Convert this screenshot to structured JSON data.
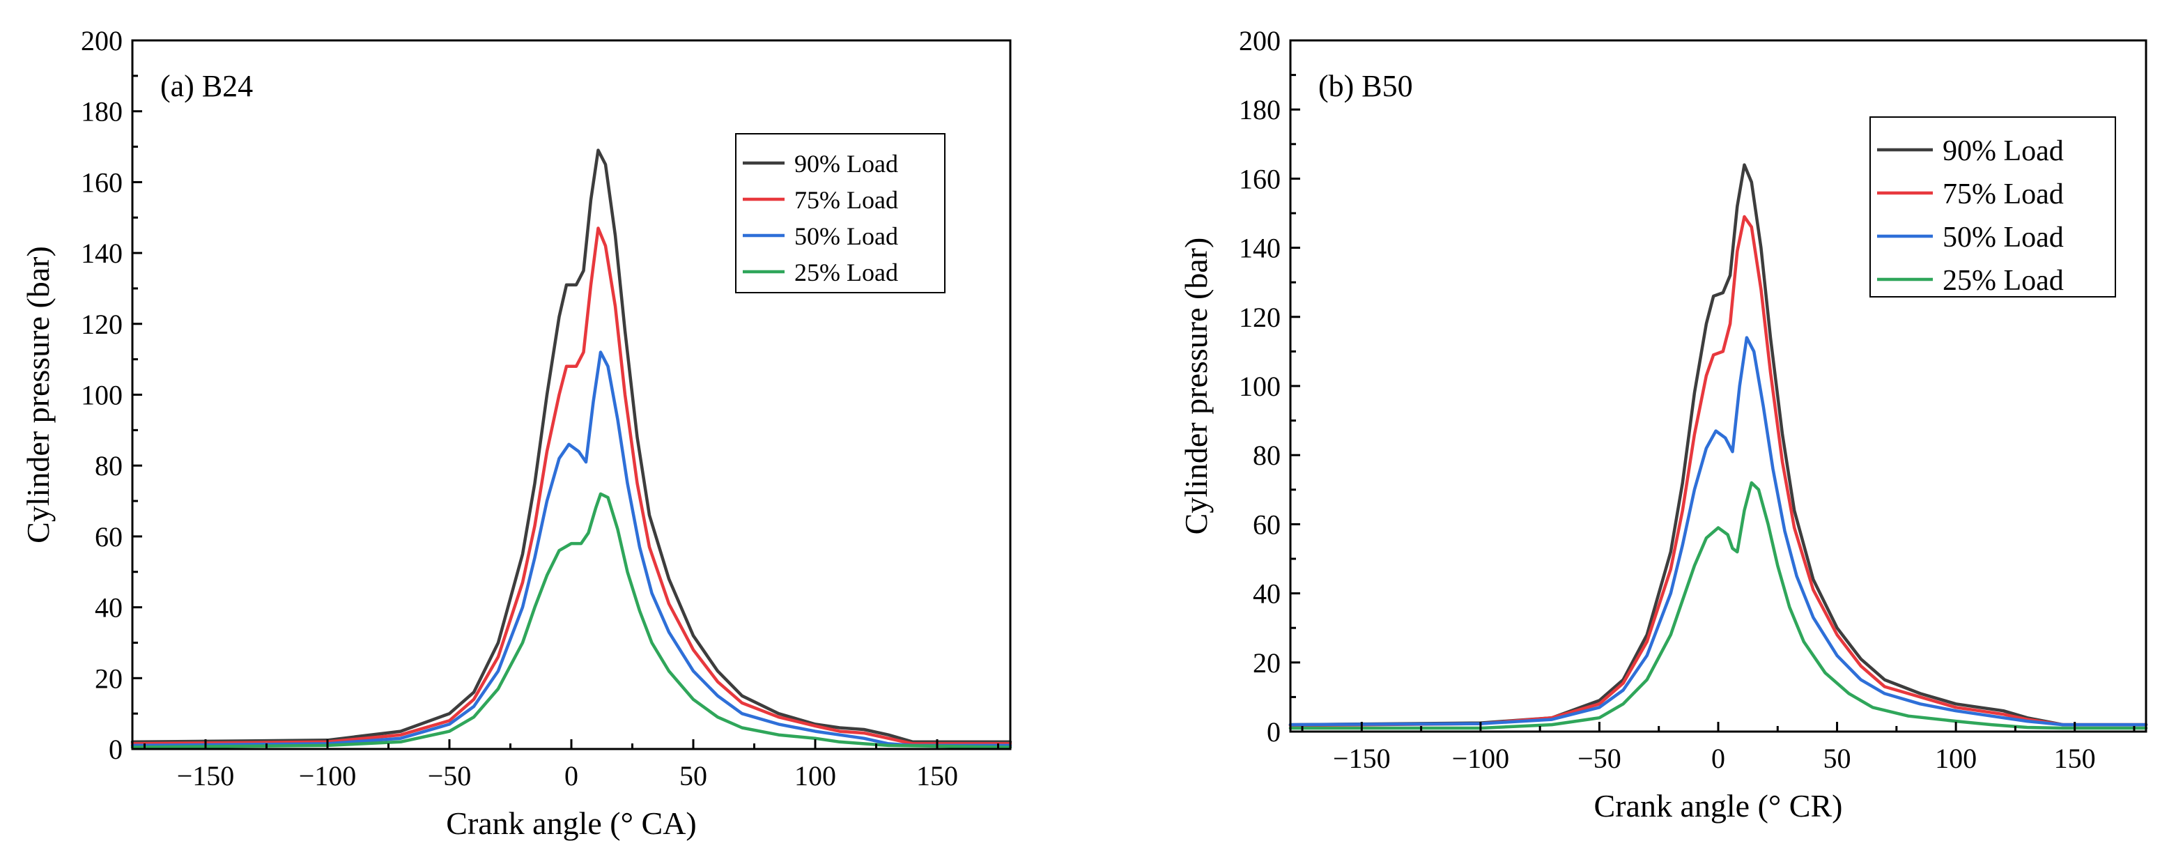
{
  "chart_data": [
    {
      "type": "line",
      "title": "(a) B24",
      "xlabel": "Crank angle (° CA)",
      "ylabel": "Cylinder pressure (bar)",
      "xlim": [
        -180,
        180
      ],
      "ylim": [
        0,
        200
      ],
      "xticks": [
        -150,
        -100,
        -50,
        0,
        50,
        100,
        150
      ],
      "yticks": [
        0,
        20,
        40,
        60,
        80,
        100,
        120,
        140,
        160,
        180,
        200
      ],
      "grid": false,
      "legend_position": "top-right",
      "series": [
        {
          "name": "90% Load",
          "color": "#3d3d3d",
          "points": [
            [
              -180,
              2
            ],
            [
              -100,
              2.5
            ],
            [
              -70,
              5
            ],
            [
              -50,
              10
            ],
            [
              -40,
              16
            ],
            [
              -30,
              30
            ],
            [
              -20,
              55
            ],
            [
              -15,
              75
            ],
            [
              -10,
              100
            ],
            [
              -5,
              122
            ],
            [
              -2,
              131
            ],
            [
              2,
              131
            ],
            [
              5,
              135
            ],
            [
              8,
              155
            ],
            [
              11,
              169
            ],
            [
              14,
              165
            ],
            [
              18,
              145
            ],
            [
              22,
              118
            ],
            [
              27,
              88
            ],
            [
              32,
              66
            ],
            [
              40,
              48
            ],
            [
              50,
              32
            ],
            [
              60,
              22
            ],
            [
              70,
              15
            ],
            [
              85,
              10
            ],
            [
              100,
              7
            ],
            [
              110,
              6
            ],
            [
              120,
              5.5
            ],
            [
              130,
              4
            ],
            [
              140,
              2
            ],
            [
              180,
              2
            ]
          ]
        },
        {
          "name": "75% Load",
          "color": "#e8383d",
          "points": [
            [
              -180,
              1.5
            ],
            [
              -100,
              2
            ],
            [
              -70,
              4
            ],
            [
              -50,
              8
            ],
            [
              -40,
              14
            ],
            [
              -30,
              26
            ],
            [
              -20,
              47
            ],
            [
              -15,
              63
            ],
            [
              -10,
              84
            ],
            [
              -5,
              100
            ],
            [
              -2,
              108
            ],
            [
              2,
              108
            ],
            [
              5,
              112
            ],
            [
              8,
              131
            ],
            [
              11,
              147
            ],
            [
              14,
              142
            ],
            [
              18,
              125
            ],
            [
              22,
              100
            ],
            [
              27,
              75
            ],
            [
              32,
              57
            ],
            [
              40,
              41
            ],
            [
              50,
              28
            ],
            [
              60,
              19
            ],
            [
              70,
              13
            ],
            [
              85,
              9
            ],
            [
              100,
              6.5
            ],
            [
              110,
              5
            ],
            [
              120,
              4.5
            ],
            [
              130,
              3
            ],
            [
              140,
              1.5
            ],
            [
              180,
              1.5
            ]
          ]
        },
        {
          "name": "50% Load",
          "color": "#2e6fd8",
          "points": [
            [
              -180,
              1
            ],
            [
              -100,
              1.5
            ],
            [
              -70,
              3
            ],
            [
              -50,
              7
            ],
            [
              -40,
              12
            ],
            [
              -30,
              22
            ],
            [
              -20,
              40
            ],
            [
              -15,
              54
            ],
            [
              -10,
              70
            ],
            [
              -5,
              82
            ],
            [
              -1,
              86
            ],
            [
              3,
              84
            ],
            [
              6,
              81
            ],
            [
              9,
              98
            ],
            [
              12,
              112
            ],
            [
              15,
              108
            ],
            [
              19,
              93
            ],
            [
              23,
              75
            ],
            [
              28,
              57
            ],
            [
              33,
              44
            ],
            [
              40,
              33
            ],
            [
              50,
              22
            ],
            [
              60,
              15
            ],
            [
              70,
              10
            ],
            [
              85,
              7
            ],
            [
              100,
              5
            ],
            [
              110,
              4
            ],
            [
              120,
              3
            ],
            [
              130,
              1.5
            ],
            [
              140,
              1
            ],
            [
              180,
              1
            ]
          ]
        },
        {
          "name": "25% Load",
          "color": "#2fa65a",
          "points": [
            [
              -180,
              0.5
            ],
            [
              -100,
              1
            ],
            [
              -70,
              2
            ],
            [
              -50,
              5
            ],
            [
              -40,
              9
            ],
            [
              -30,
              17
            ],
            [
              -20,
              30
            ],
            [
              -15,
              40
            ],
            [
              -10,
              49
            ],
            [
              -5,
              56
            ],
            [
              0,
              58
            ],
            [
              4,
              58
            ],
            [
              7,
              61
            ],
            [
              10,
              68
            ],
            [
              12,
              72
            ],
            [
              15,
              71
            ],
            [
              19,
              62
            ],
            [
              23,
              50
            ],
            [
              28,
              39
            ],
            [
              33,
              30
            ],
            [
              40,
              22
            ],
            [
              50,
              14
            ],
            [
              60,
              9
            ],
            [
              70,
              6
            ],
            [
              85,
              4
            ],
            [
              100,
              3
            ],
            [
              110,
              2
            ],
            [
              120,
              1.5
            ],
            [
              130,
              1
            ],
            [
              180,
              0.5
            ]
          ]
        }
      ]
    },
    {
      "type": "line",
      "title": "(b) B50",
      "xlabel": "Crank angle (° CR)",
      "ylabel": "Cylinder pressure (bar)",
      "xlim": [
        -180,
        180
      ],
      "ylim": [
        0,
        200
      ],
      "xticks": [
        -150,
        -100,
        -50,
        0,
        50,
        100,
        150
      ],
      "yticks": [
        0,
        20,
        40,
        60,
        80,
        100,
        120,
        140,
        160,
        180,
        200
      ],
      "grid": false,
      "legend_position": "top-right",
      "series": [
        {
          "name": "90% Load",
          "color": "#3d3d3d",
          "points": [
            [
              -180,
              2
            ],
            [
              -100,
              2.5
            ],
            [
              -70,
              4
            ],
            [
              -50,
              9
            ],
            [
              -40,
              15
            ],
            [
              -30,
              28
            ],
            [
              -20,
              52
            ],
            [
              -15,
              72
            ],
            [
              -10,
              98
            ],
            [
              -5,
              118
            ],
            [
              -2,
              126
            ],
            [
              2,
              127
            ],
            [
              5,
              132
            ],
            [
              8,
              152
            ],
            [
              11,
              164
            ],
            [
              14,
              159
            ],
            [
              18,
              140
            ],
            [
              22,
              114
            ],
            [
              27,
              86
            ],
            [
              32,
              64
            ],
            [
              40,
              44
            ],
            [
              50,
              30
            ],
            [
              60,
              21
            ],
            [
              70,
              15
            ],
            [
              85,
              11
            ],
            [
              100,
              8
            ],
            [
              110,
              7
            ],
            [
              120,
              6
            ],
            [
              130,
              4
            ],
            [
              145,
              2
            ],
            [
              180,
              2
            ]
          ]
        },
        {
          "name": "75% Load",
          "color": "#e8383d",
          "points": [
            [
              -180,
              1.8
            ],
            [
              -100,
              2.3
            ],
            [
              -70,
              4
            ],
            [
              -50,
              8
            ],
            [
              -40,
              14
            ],
            [
              -30,
              26
            ],
            [
              -20,
              47
            ],
            [
              -15,
              64
            ],
            [
              -10,
              86
            ],
            [
              -5,
              103
            ],
            [
              -2,
              109
            ],
            [
              2,
              110
            ],
            [
              5,
              118
            ],
            [
              8,
              139
            ],
            [
              11,
              149
            ],
            [
              14,
              146
            ],
            [
              18,
              128
            ],
            [
              22,
              104
            ],
            [
              27,
              78
            ],
            [
              32,
              59
            ],
            [
              40,
              41
            ],
            [
              50,
              28
            ],
            [
              60,
              19
            ],
            [
              70,
              13
            ],
            [
              85,
              10
            ],
            [
              100,
              7
            ],
            [
              110,
              6
            ],
            [
              120,
              5
            ],
            [
              130,
              3.5
            ],
            [
              145,
              2
            ],
            [
              180,
              2
            ]
          ]
        },
        {
          "name": "50% Load",
          "color": "#2e6fd8",
          "points": [
            [
              -180,
              2
            ],
            [
              -100,
              2.3
            ],
            [
              -70,
              3.5
            ],
            [
              -50,
              7
            ],
            [
              -40,
              12
            ],
            [
              -30,
              22
            ],
            [
              -20,
              40
            ],
            [
              -15,
              54
            ],
            [
              -10,
              70
            ],
            [
              -5,
              82
            ],
            [
              -1,
              87
            ],
            [
              3,
              85
            ],
            [
              6,
              81
            ],
            [
              9,
              100
            ],
            [
              12,
              114
            ],
            [
              15,
              110
            ],
            [
              19,
              94
            ],
            [
              23,
              76
            ],
            [
              28,
              58
            ],
            [
              33,
              45
            ],
            [
              40,
              33
            ],
            [
              50,
              22
            ],
            [
              60,
              15
            ],
            [
              70,
              11
            ],
            [
              85,
              8
            ],
            [
              100,
              6
            ],
            [
              110,
              5
            ],
            [
              120,
              4
            ],
            [
              130,
              3
            ],
            [
              145,
              2
            ],
            [
              180,
              2
            ]
          ]
        },
        {
          "name": "25% Load",
          "color": "#2fa65a",
          "points": [
            [
              -180,
              1
            ],
            [
              -100,
              1
            ],
            [
              -70,
              2
            ],
            [
              -50,
              4
            ],
            [
              -40,
              8
            ],
            [
              -30,
              15
            ],
            [
              -20,
              28
            ],
            [
              -15,
              38
            ],
            [
              -10,
              48
            ],
            [
              -5,
              56
            ],
            [
              0,
              59
            ],
            [
              4,
              57
            ],
            [
              6,
              53
            ],
            [
              8,
              52
            ],
            [
              11,
              64
            ],
            [
              14,
              72
            ],
            [
              17,
              70
            ],
            [
              21,
              60
            ],
            [
              25,
              48
            ],
            [
              30,
              36
            ],
            [
              36,
              26
            ],
            [
              45,
              17
            ],
            [
              55,
              11
            ],
            [
              65,
              7
            ],
            [
              80,
              4.5
            ],
            [
              100,
              3
            ],
            [
              115,
              2
            ],
            [
              130,
              1.2
            ],
            [
              145,
              1
            ],
            [
              180,
              1
            ]
          ]
        }
      ]
    }
  ]
}
